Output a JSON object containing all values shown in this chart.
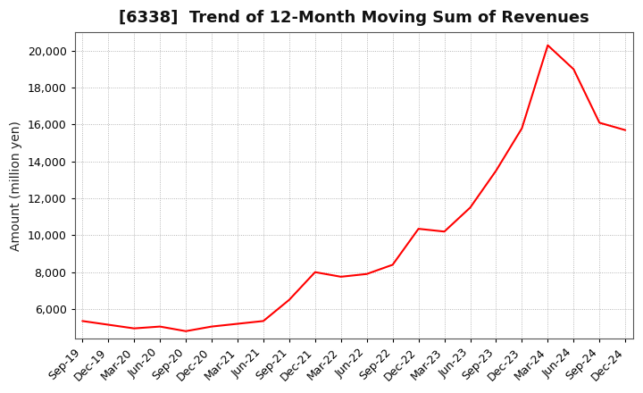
{
  "title": "[6338]  Trend of 12-Month Moving Sum of Revenues",
  "ylabel": "Amount (million yen)",
  "line_color": "#ff0000",
  "background_color": "#ffffff",
  "plot_bg_color": "#ffffff",
  "grid_color": "#999999",
  "x_labels": [
    "Sep-19",
    "Dec-19",
    "Mar-20",
    "Jun-20",
    "Sep-20",
    "Dec-20",
    "Mar-21",
    "Jun-21",
    "Sep-21",
    "Dec-21",
    "Mar-22",
    "Jun-22",
    "Sep-22",
    "Dec-22",
    "Mar-23",
    "Jun-23",
    "Sep-23",
    "Dec-23",
    "Mar-24",
    "Jun-24",
    "Sep-24",
    "Dec-24"
  ],
  "values": [
    5350,
    5150,
    4950,
    5050,
    4800,
    5050,
    5200,
    5350,
    6500,
    8000,
    7750,
    7900,
    8400,
    10350,
    10200,
    11500,
    13500,
    15800,
    20300,
    19000,
    16100,
    15700
  ],
  "ylim": [
    4400,
    21000
  ],
  "yticks": [
    6000,
    8000,
    10000,
    12000,
    14000,
    16000,
    18000,
    20000
  ],
  "title_fontsize": 13,
  "label_fontsize": 10,
  "tick_fontsize": 9
}
